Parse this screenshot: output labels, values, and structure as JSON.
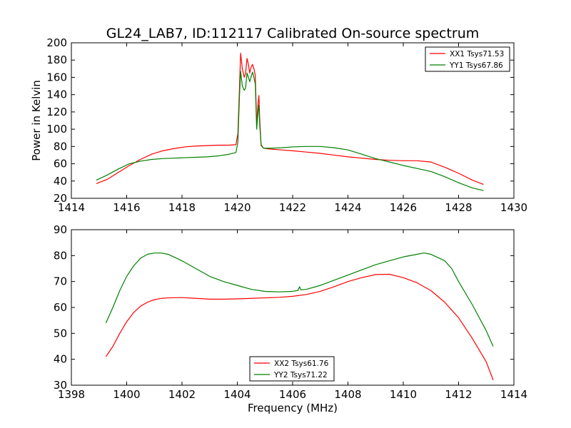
{
  "chart_data": [
    {
      "type": "line",
      "title": "GL24_LAB7, ID:112117 Calibrated On-source spectrum",
      "xlabel": "",
      "ylabel": "Power in Kelvin",
      "xlim": [
        1414,
        1430
      ],
      "ylim": [
        20,
        200
      ],
      "xticks": [
        1414,
        1416,
        1418,
        1420,
        1422,
        1424,
        1426,
        1428,
        1430
      ],
      "yticks": [
        20,
        40,
        60,
        80,
        100,
        120,
        140,
        160,
        180,
        200
      ],
      "grid": false,
      "legend_position": "top-right",
      "series": [
        {
          "name": "XX1 Tsys71.53",
          "color": "#ff0000",
          "points": [
            [
              1414.9,
              37
            ],
            [
              1415.3,
              42
            ],
            [
              1415.7,
              50
            ],
            [
              1416.1,
              58
            ],
            [
              1416.5,
              65
            ],
            [
              1416.9,
              71
            ],
            [
              1417.3,
              75
            ],
            [
              1417.7,
              77.5
            ],
            [
              1418.1,
              79.5
            ],
            [
              1418.5,
              80.5
            ],
            [
              1418.9,
              81
            ],
            [
              1419.3,
              81.5
            ],
            [
              1419.7,
              81.5
            ],
            [
              1419.95,
              82
            ],
            [
              1420.02,
              95
            ],
            [
              1420.08,
              150
            ],
            [
              1420.12,
              188
            ],
            [
              1420.18,
              170
            ],
            [
              1420.25,
              160
            ],
            [
              1420.3,
              165
            ],
            [
              1420.35,
              182
            ],
            [
              1420.4,
              175
            ],
            [
              1420.45,
              165
            ],
            [
              1420.5,
              172
            ],
            [
              1420.55,
              175
            ],
            [
              1420.6,
              170
            ],
            [
              1420.65,
              162
            ],
            [
              1420.7,
              105
            ],
            [
              1420.75,
              130
            ],
            [
              1420.78,
              139
            ],
            [
              1420.81,
              112
            ],
            [
              1420.86,
              81
            ],
            [
              1420.95,
              78
            ],
            [
              1421.2,
              77
            ],
            [
              1421.6,
              76
            ],
            [
              1422,
              75
            ],
            [
              1422.5,
              73.5
            ],
            [
              1423,
              72
            ],
            [
              1423.5,
              70
            ],
            [
              1424,
              68
            ],
            [
              1424.5,
              66.5
            ],
            [
              1425,
              65
            ],
            [
              1425.5,
              64
            ],
            [
              1426,
              63.5
            ],
            [
              1426.5,
              63.5
            ],
            [
              1427,
              62
            ],
            [
              1427.5,
              56
            ],
            [
              1428,
              49
            ],
            [
              1428.5,
              41
            ],
            [
              1428.9,
              36
            ]
          ]
        },
        {
          "name": "YY1 Tsys67.86",
          "color": "#008000",
          "points": [
            [
              1414.9,
              41
            ],
            [
              1415.3,
              47
            ],
            [
              1415.7,
              54
            ],
            [
              1416.1,
              60
            ],
            [
              1416.5,
              63
            ],
            [
              1416.9,
              65
            ],
            [
              1417.3,
              66
            ],
            [
              1417.7,
              66.5
            ],
            [
              1418.1,
              67
            ],
            [
              1418.5,
              67.5
            ],
            [
              1418.9,
              68
            ],
            [
              1419.3,
              69
            ],
            [
              1419.7,
              71
            ],
            [
              1419.95,
              73
            ],
            [
              1420.02,
              85
            ],
            [
              1420.08,
              140
            ],
            [
              1420.12,
              167
            ],
            [
              1420.18,
              150
            ],
            [
              1420.25,
              145
            ],
            [
              1420.3,
              148
            ],
            [
              1420.35,
              165
            ],
            [
              1420.4,
              160
            ],
            [
              1420.45,
              155
            ],
            [
              1420.5,
              161
            ],
            [
              1420.55,
              166
            ],
            [
              1420.6,
              160
            ],
            [
              1420.65,
              152
            ],
            [
              1420.7,
              100
            ],
            [
              1420.75,
              120
            ],
            [
              1420.78,
              128
            ],
            [
              1420.81,
              105
            ],
            [
              1420.86,
              82
            ],
            [
              1420.95,
              78
            ],
            [
              1421.2,
              78
            ],
            [
              1421.6,
              78.5
            ],
            [
              1422,
              79.5
            ],
            [
              1422.5,
              80
            ],
            [
              1423,
              80
            ],
            [
              1423.5,
              78.5
            ],
            [
              1424,
              76
            ],
            [
              1424.5,
              71
            ],
            [
              1425,
              66
            ],
            [
              1425.5,
              62
            ],
            [
              1426,
              58
            ],
            [
              1426.5,
              54.5
            ],
            [
              1427,
              51
            ],
            [
              1427.5,
              45
            ],
            [
              1428,
              38
            ],
            [
              1428.5,
              32
            ],
            [
              1428.9,
              29
            ]
          ]
        }
      ]
    },
    {
      "type": "line",
      "title": "",
      "xlabel": "Frequency (MHz)",
      "ylabel": "",
      "xlim": [
        1398,
        1414
      ],
      "ylim": [
        30,
        90
      ],
      "xticks": [
        1398,
        1400,
        1402,
        1404,
        1406,
        1408,
        1410,
        1412,
        1414
      ],
      "yticks": [
        30,
        40,
        50,
        60,
        70,
        80,
        90
      ],
      "grid": false,
      "legend_position": "bottom-center",
      "series": [
        {
          "name": "XX2 Tsys61.76",
          "color": "#ff0000",
          "points": [
            [
              1399.25,
              41
            ],
            [
              1399.5,
              45
            ],
            [
              1399.75,
              50
            ],
            [
              1400,
              54.5
            ],
            [
              1400.25,
              58
            ],
            [
              1400.5,
              60.5
            ],
            [
              1400.75,
              62
            ],
            [
              1401,
              63
            ],
            [
              1401.25,
              63.5
            ],
            [
              1401.5,
              63.7
            ],
            [
              1402,
              63.8
            ],
            [
              1402.5,
              63.5
            ],
            [
              1403,
              63.2
            ],
            [
              1403.5,
              63.2
            ],
            [
              1404,
              63.3
            ],
            [
              1404.5,
              63.5
            ],
            [
              1405,
              63.7
            ],
            [
              1405.5,
              63.9
            ],
            [
              1406,
              64.3
            ],
            [
              1406.5,
              65
            ],
            [
              1407,
              66.2
            ],
            [
              1407.5,
              68
            ],
            [
              1408,
              70
            ],
            [
              1408.5,
              71.5
            ],
            [
              1409,
              72.7
            ],
            [
              1409.5,
              72.8
            ],
            [
              1410,
              71.5
            ],
            [
              1410.5,
              69.5
            ],
            [
              1411,
              66.5
            ],
            [
              1411.5,
              62
            ],
            [
              1412,
              56
            ],
            [
              1412.5,
              48
            ],
            [
              1413,
              39
            ],
            [
              1413.25,
              32
            ]
          ]
        },
        {
          "name": "YY2 Tsys71.22",
          "color": "#008000",
          "points": [
            [
              1399.25,
              54
            ],
            [
              1399.5,
              60
            ],
            [
              1399.75,
              66.5
            ],
            [
              1400,
              72
            ],
            [
              1400.25,
              76
            ],
            [
              1400.5,
              79
            ],
            [
              1400.75,
              80.5
            ],
            [
              1401,
              81
            ],
            [
              1401.25,
              81
            ],
            [
              1401.5,
              80.5
            ],
            [
              1402,
              78
            ],
            [
              1402.5,
              75
            ],
            [
              1403,
              72
            ],
            [
              1403.5,
              70
            ],
            [
              1404,
              68.5
            ],
            [
              1404.5,
              67
            ],
            [
              1405,
              66.2
            ],
            [
              1405.5,
              66
            ],
            [
              1406,
              66.2
            ],
            [
              1406.2,
              66.6
            ],
            [
              1406.25,
              68
            ],
            [
              1406.3,
              66.8
            ],
            [
              1406.5,
              67
            ],
            [
              1407,
              68.5
            ],
            [
              1407.5,
              70.5
            ],
            [
              1408,
              72.5
            ],
            [
              1408.5,
              74.5
            ],
            [
              1409,
              76.5
            ],
            [
              1409.5,
              78
            ],
            [
              1410,
              79.5
            ],
            [
              1410.5,
              80.5
            ],
            [
              1410.75,
              81
            ],
            [
              1411,
              80.5
            ],
            [
              1411.5,
              78
            ],
            [
              1411.75,
              75
            ],
            [
              1412,
              70
            ],
            [
              1412.5,
              61
            ],
            [
              1413,
              51
            ],
            [
              1413.25,
              45
            ]
          ]
        }
      ]
    }
  ]
}
